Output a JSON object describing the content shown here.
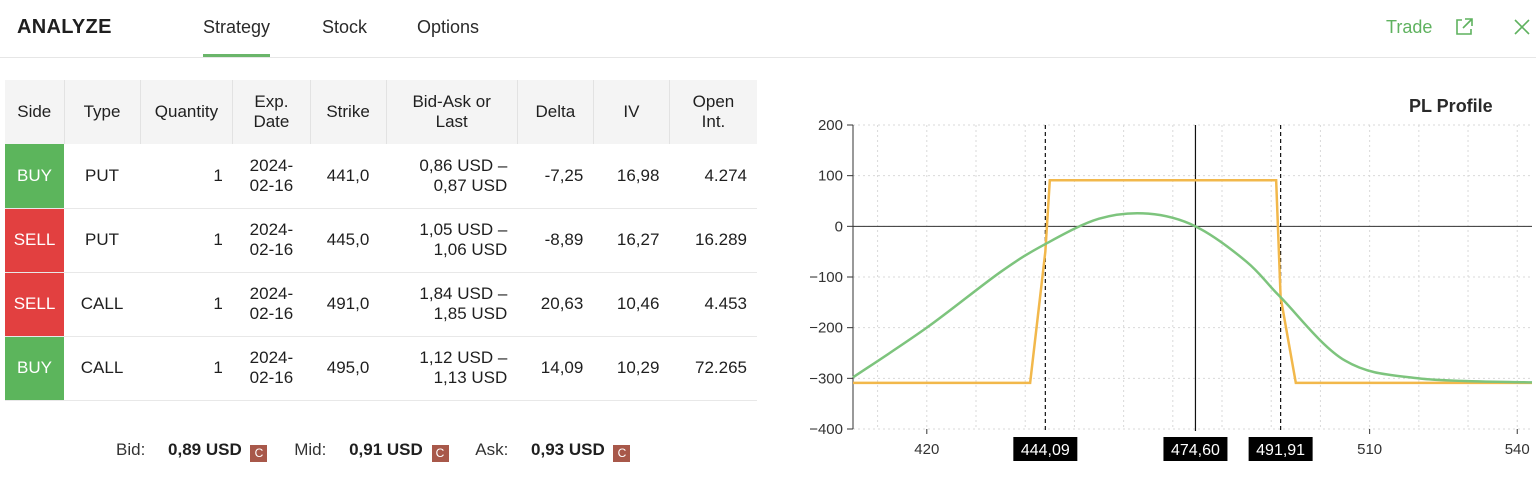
{
  "header": {
    "title": "ANALYZE",
    "tabs": [
      {
        "label": "Strategy",
        "active": true
      },
      {
        "label": "Stock",
        "active": false
      },
      {
        "label": "Options",
        "active": false
      }
    ],
    "trade_label": "Trade",
    "accent_color": "#5fb25f"
  },
  "table": {
    "headers": {
      "side": "Side",
      "type": "Type",
      "quantity": "Quantity",
      "exp_line1": "Exp.",
      "exp_line2": "Date",
      "strike": "Strike",
      "bidask_line1": "Bid-Ask or",
      "bidask_line2": "Last",
      "delta": "Delta",
      "iv": "IV",
      "oi_line1": "Open",
      "oi_line2": "Int."
    },
    "rows": [
      {
        "side": "BUY",
        "type": "PUT",
        "qty": "1",
        "exp1": "2024-",
        "exp2": "02-16",
        "strike": "441,0",
        "bid": "0,86 USD –",
        "ask": "0,87 USD",
        "delta": "-7,25",
        "iv": "16,98",
        "oi": "4.274"
      },
      {
        "side": "SELL",
        "type": "PUT",
        "qty": "1",
        "exp1": "2024-",
        "exp2": "02-16",
        "strike": "445,0",
        "bid": "1,05 USD –",
        "ask": "1,06 USD",
        "delta": "-8,89",
        "iv": "16,27",
        "oi": "16.289"
      },
      {
        "side": "SELL",
        "type": "CALL",
        "qty": "1",
        "exp1": "2024-",
        "exp2": "02-16",
        "strike": "491,0",
        "bid": "1,84 USD –",
        "ask": "1,85 USD",
        "delta": "20,63",
        "iv": "10,46",
        "oi": "4.453"
      },
      {
        "side": "BUY",
        "type": "CALL",
        "qty": "1",
        "exp1": "2024-",
        "exp2": "02-16",
        "strike": "495,0",
        "bid": "1,12 USD –",
        "ask": "1,13 USD",
        "delta": "14,09",
        "iv": "10,29",
        "oi": "72.265"
      }
    ],
    "colors": {
      "buy": "#5cb55c",
      "sell": "#e24040"
    }
  },
  "prices": {
    "bid_label": "Bid:",
    "bid_value": "0,89 USD",
    "mid_label": "Mid:",
    "mid_value": "0,91 USD",
    "ask_label": "Ask:",
    "ask_value": "0,93 USD",
    "badge": "C"
  },
  "chart_data": {
    "type": "line",
    "title": "PL Profile",
    "xlim": [
      405,
      543
    ],
    "ylim": [
      -400,
      200
    ],
    "x_ticks": [
      420,
      510,
      540
    ],
    "y_ticks": [
      200,
      100,
      0,
      -100,
      -200,
      -300,
      -400
    ],
    "x_tick_labels": [
      "420",
      "510",
      "540"
    ],
    "y_tick_labels": [
      "200",
      "100",
      "0",
      "−100",
      "−200",
      "−300",
      "−400"
    ],
    "grid": true,
    "series": [
      {
        "color": "#f2b84b",
        "x": [
          405,
          441,
          444.09,
          445,
          491,
          491.91,
          495,
          543
        ],
        "y": [
          -309,
          -309,
          -50,
          91,
          91,
          -140,
          -309,
          -309
        ]
      },
      {
        "color": "#7dc47d",
        "x": [
          405,
          420,
          435,
          444.09,
          455,
          465,
          474.6,
          485,
          491.91,
          505,
          520,
          543
        ],
        "y": [
          -298,
          -200,
          -90,
          -35,
          15,
          25,
          0,
          -70,
          -140,
          -265,
          -300,
          -308
        ]
      }
    ],
    "markers": [
      {
        "x": 444.09,
        "label": "444,09",
        "style": "dashed"
      },
      {
        "x": 474.6,
        "label": "474,60",
        "style": "solid"
      },
      {
        "x": 491.91,
        "label": "491,91",
        "style": "dashed"
      }
    ],
    "partially_hidden_tick": "0"
  }
}
